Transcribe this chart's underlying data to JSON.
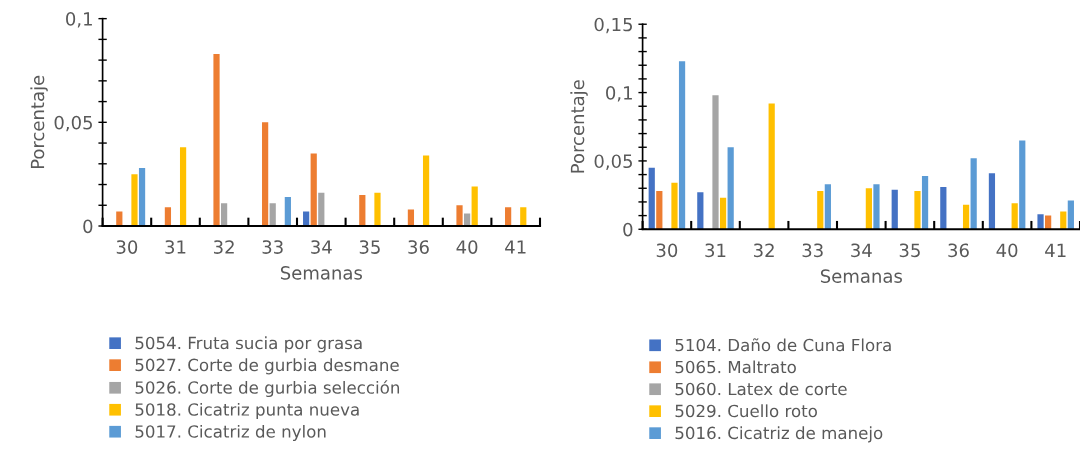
{
  "chart_data": [
    {
      "type": "bar",
      "xlabel": "Semanas",
      "ylabel": "Porcentaje",
      "categories": [
        "30",
        "31",
        "32",
        "33",
        "34",
        "35",
        "36",
        "40",
        "41"
      ],
      "ylim": [
        0,
        0.1
      ],
      "yticks": [
        {
          "value": 0,
          "label": "0"
        },
        {
          "value": 0.01,
          "label": null
        },
        {
          "value": 0.02,
          "label": null
        },
        {
          "value": 0.03,
          "label": null
        },
        {
          "value": 0.04,
          "label": null
        },
        {
          "value": 0.05,
          "label": "0,05"
        },
        {
          "value": 0.06,
          "label": null
        },
        {
          "value": 0.07,
          "label": null
        },
        {
          "value": 0.08,
          "label": null
        },
        {
          "value": 0.09,
          "label": null
        },
        {
          "value": 0.1,
          "label": "0,1"
        }
      ],
      "grid": false,
      "legend": "bottom",
      "series": [
        {
          "name": "5054. Fruta sucia por grasa",
          "color": "#4472c4",
          "values": [
            null,
            null,
            null,
            null,
            0.007,
            null,
            null,
            null,
            null
          ]
        },
        {
          "name": "5027. Corte de gurbia desmane",
          "color": "#ed7d31",
          "values": [
            0.007,
            0.009,
            0.083,
            0.05,
            0.035,
            0.015,
            0.008,
            0.01,
            0.009
          ]
        },
        {
          "name": "5026. Corte de gurbia selección",
          "color": "#a5a5a5",
          "values": [
            null,
            null,
            0.011,
            0.011,
            0.016,
            null,
            null,
            0.006,
            null
          ]
        },
        {
          "name": "5018. Cicatriz punta nueva",
          "color": "#ffc000",
          "values": [
            0.025,
            0.038,
            null,
            null,
            null,
            0.016,
            0.034,
            0.019,
            0.009
          ]
        },
        {
          "name": "5017. Cicatriz de nylon",
          "color": "#5b9bd5",
          "values": [
            0.028,
            null,
            null,
            0.014,
            null,
            null,
            null,
            null,
            null
          ]
        }
      ]
    },
    {
      "type": "bar",
      "xlabel": "Semanas",
      "ylabel": "Porcentaje",
      "categories": [
        "30",
        "31",
        "32",
        "33",
        "34",
        "35",
        "36",
        "40",
        "41"
      ],
      "ylim": [
        0,
        0.15
      ],
      "yticks": [
        {
          "value": 0,
          "label": "0"
        },
        {
          "value": 0.01,
          "label": null
        },
        {
          "value": 0.02,
          "label": null
        },
        {
          "value": 0.03,
          "label": null
        },
        {
          "value": 0.04,
          "label": null
        },
        {
          "value": 0.05,
          "label": "0,05"
        },
        {
          "value": 0.06,
          "label": null
        },
        {
          "value": 0.07,
          "label": null
        },
        {
          "value": 0.08,
          "label": null
        },
        {
          "value": 0.09,
          "label": null
        },
        {
          "value": 0.1,
          "label": "0,1"
        },
        {
          "value": 0.11,
          "label": null
        },
        {
          "value": 0.12,
          "label": null
        },
        {
          "value": 0.13,
          "label": null
        },
        {
          "value": 0.14,
          "label": null
        },
        {
          "value": 0.15,
          "label": "0,15"
        }
      ],
      "grid": false,
      "legend": "bottom",
      "series": [
        {
          "name": "5104. Daño de Cuna Flora",
          "color": "#4472c4",
          "values": [
            0.045,
            0.027,
            null,
            null,
            null,
            0.029,
            0.031,
            0.041,
            0.011
          ]
        },
        {
          "name": "5065. Maltrato",
          "color": "#ed7d31",
          "values": [
            0.028,
            null,
            null,
            null,
            null,
            null,
            null,
            null,
            0.01
          ]
        },
        {
          "name": "5060. Latex de corte",
          "color": "#a5a5a5",
          "values": [
            null,
            0.098,
            null,
            null,
            null,
            null,
            null,
            null,
            null
          ]
        },
        {
          "name": "5029. Cuello roto",
          "color": "#ffc000",
          "values": [
            0.034,
            0.023,
            0.092,
            0.028,
            0.03,
            0.028,
            0.018,
            0.019,
            0.013
          ]
        },
        {
          "name": "5016. Cicatriz de manejo",
          "color": "#5b9bd5",
          "values": [
            0.123,
            0.06,
            null,
            0.033,
            0.033,
            0.039,
            0.052,
            0.065,
            0.021
          ]
        }
      ]
    }
  ]
}
